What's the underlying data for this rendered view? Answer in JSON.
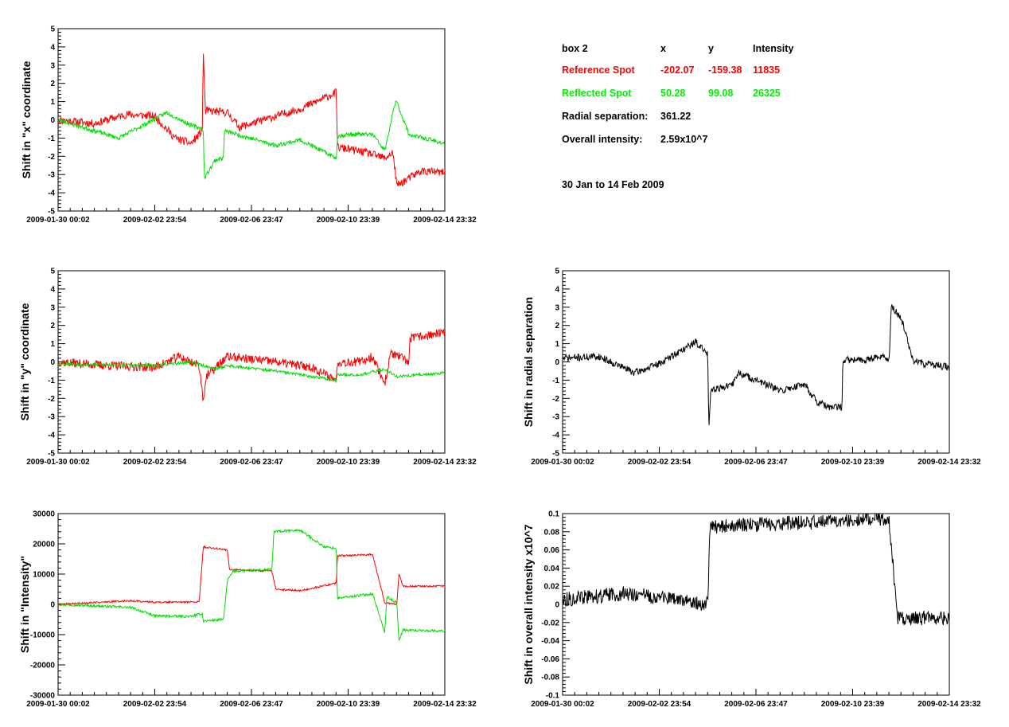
{
  "colors": {
    "reference": "#ff0000",
    "reflected": "#00dd00",
    "axis": "#000000",
    "single": "#000000"
  },
  "info": {
    "header": {
      "label": "box 2",
      "x": "x",
      "y": "y",
      "intensity": "Intensity"
    },
    "reference": {
      "label": "Reference Spot",
      "x": "-202.07",
      "y": "-159.38",
      "intensity": "11835"
    },
    "reflected": {
      "label": "Reflected Spot",
      "x": "50.28",
      "y": "99.08",
      "intensity": "26325"
    },
    "radial": {
      "label": "Radial separation:",
      "value": "361.22"
    },
    "overall": {
      "label": "Overall intensity:",
      "value": "2.59x10^7"
    },
    "period": "30 Jan to 14 Feb 2009"
  },
  "chart_data": [
    {
      "id": "shift-x",
      "type": "line",
      "ylabel": "Shift in \"x\" coordinate",
      "xlim": [
        "2009-01-30 00:02",
        "2009-02-14 23:32"
      ],
      "ylim": [
        -5,
        5
      ],
      "yticks": [
        "5",
        "4",
        "3",
        "2",
        "1",
        "0",
        "-1",
        "-2",
        "-3",
        "-4",
        "-5"
      ],
      "xticks": [
        "2009-01-30 00:02",
        "2009-02-02 23:54",
        "2009-02-06 23:47",
        "2009-02-10 23:39",
        "2009-02-14 23:32"
      ],
      "series": [
        {
          "color": "reference",
          "noise": 0.22,
          "seed": 11,
          "points": [
            [
              "2009-01-30 00:02",
              0
            ],
            [
              "2009-01-31 12:00",
              -0.2
            ],
            [
              "2009-02-01 20:00",
              0.3
            ],
            [
              "2009-02-03 00:00",
              0.2
            ],
            [
              "2009-02-03 20:00",
              -1
            ],
            [
              "2009-02-04 12:00",
              -1.3
            ],
            [
              "2009-02-04 23:00",
              -0.6
            ],
            [
              "2009-02-05 00:00",
              3.8
            ],
            [
              "2009-02-05 02:00",
              0.5
            ],
            [
              "2009-02-06 00:00",
              0.4
            ],
            [
              "2009-02-06 12:00",
              -0.4
            ],
            [
              "2009-02-07 12:00",
              0
            ],
            [
              "2009-02-09 00:00",
              0.6
            ],
            [
              "2009-02-10 12:00",
              1.5
            ],
            [
              "2009-02-10 13:00",
              -1.5
            ],
            [
              "2009-02-11 18:00",
              -1.8
            ],
            [
              "2009-02-12 12:00",
              -2.1
            ],
            [
              "2009-02-12 20:00",
              -1.8
            ],
            [
              "2009-02-13 00:00",
              -3.6
            ],
            [
              "2009-02-14 00:00",
              -2.8
            ],
            [
              "2009-02-14 23:32",
              -2.9
            ]
          ]
        },
        {
          "color": "reflected",
          "noise": 0.12,
          "seed": 23,
          "points": [
            [
              "2009-01-30 00:02",
              0
            ],
            [
              "2009-02-01 12:00",
              -1
            ],
            [
              "2009-02-02 12:00",
              -0.3
            ],
            [
              "2009-02-03 12:00",
              0.4
            ],
            [
              "2009-02-04 12:00",
              -0.3
            ],
            [
              "2009-02-05 00:00",
              -0.5
            ],
            [
              "2009-02-05 01:00",
              -3.2
            ],
            [
              "2009-02-05 12:00",
              -2.2
            ],
            [
              "2009-02-05 20:00",
              -2.1
            ],
            [
              "2009-02-05 21:00",
              -0.6
            ],
            [
              "2009-02-08 00:00",
              -1.4
            ],
            [
              "2009-02-09 00:00",
              -1.1
            ],
            [
              "2009-02-10 12:00",
              -2.1
            ],
            [
              "2009-02-10 13:00",
              -0.9
            ],
            [
              "2009-02-11 00:00",
              -0.8
            ],
            [
              "2009-02-12 00:00",
              -0.8
            ],
            [
              "2009-02-12 12:00",
              -1.7
            ],
            [
              "2009-02-12 23:00",
              1.1
            ],
            [
              "2009-02-13 12:00",
              -0.8
            ],
            [
              "2009-02-14 23:32",
              -1.3
            ]
          ]
        }
      ]
    },
    {
      "id": "shift-y",
      "type": "line",
      "ylabel": "Shift in \"y\" coordinate",
      "xlim": [
        "2009-01-30 00:02",
        "2009-02-14 23:32"
      ],
      "ylim": [
        -5,
        5
      ],
      "yticks": [
        "5",
        "4",
        "3",
        "2",
        "1",
        "0",
        "-1",
        "-2",
        "-3",
        "-4",
        "-5"
      ],
      "xticks": [
        "2009-01-30 00:02",
        "2009-02-02 23:54",
        "2009-02-06 23:47",
        "2009-02-10 23:39",
        "2009-02-14 23:32"
      ],
      "series": [
        {
          "color": "reference",
          "noise": 0.25,
          "seed": 37,
          "points": [
            [
              "2009-01-30 00:02",
              0
            ],
            [
              "2009-02-01 00:00",
              -0.2
            ],
            [
              "2009-02-03 00:00",
              -0.3
            ],
            [
              "2009-02-04 00:00",
              0.3
            ],
            [
              "2009-02-04 20:00",
              -0.2
            ],
            [
              "2009-02-05 00:00",
              -2.1
            ],
            [
              "2009-02-05 03:00",
              -0.8
            ],
            [
              "2009-02-06 00:00",
              0.3
            ],
            [
              "2009-02-08 00:00",
              0
            ],
            [
              "2009-02-09 12:00",
              -0.3
            ],
            [
              "2009-02-10 12:00",
              -1
            ],
            [
              "2009-02-10 13:00",
              0
            ],
            [
              "2009-02-11 12:00",
              0
            ],
            [
              "2009-02-12 00:00",
              0.3
            ],
            [
              "2009-02-12 12:00",
              -1.2
            ],
            [
              "2009-02-12 18:00",
              0.5
            ],
            [
              "2009-02-13 12:00",
              0
            ],
            [
              "2009-02-13 13:00",
              1.3
            ],
            [
              "2009-02-14 23:32",
              1.6
            ]
          ]
        },
        {
          "color": "reflected",
          "noise": 0.08,
          "seed": 53,
          "points": [
            [
              "2009-01-30 00:02",
              -0.1
            ],
            [
              "2009-02-03 00:00",
              -0.2
            ],
            [
              "2009-02-04 12:00",
              0
            ],
            [
              "2009-02-05 12:00",
              -0.4
            ],
            [
              "2009-02-06 00:00",
              -0.2
            ],
            [
              "2009-02-08 00:00",
              -0.5
            ],
            [
              "2009-02-10 12:00",
              -1
            ],
            [
              "2009-02-10 13:00",
              -0.7
            ],
            [
              "2009-02-11 12:00",
              -0.7
            ],
            [
              "2009-02-12 12:00",
              -0.4
            ],
            [
              "2009-02-13 00:00",
              -0.8
            ],
            [
              "2009-02-14 23:32",
              -0.6
            ]
          ]
        }
      ]
    },
    {
      "id": "radial",
      "type": "line",
      "ylabel": "Shift in radial separation",
      "xlim": [
        "2009-01-30 00:02",
        "2009-02-14 23:32"
      ],
      "ylim": [
        -5,
        5
      ],
      "yticks": [
        "5",
        "4",
        "3",
        "2",
        "1",
        "0",
        "-1",
        "-2",
        "-3",
        "-4",
        "-5"
      ],
      "xticks": [
        "2009-01-30 00:02",
        "2009-02-02 23:54",
        "2009-02-06 23:47",
        "2009-02-10 23:39",
        "2009-02-14 23:32"
      ],
      "series": [
        {
          "color": "single",
          "noise": 0.2,
          "seed": 71,
          "points": [
            [
              "2009-01-30 00:02",
              0.2
            ],
            [
              "2009-01-31 12:00",
              0.3
            ],
            [
              "2009-02-02 00:00",
              -0.6
            ],
            [
              "2009-02-03 00:00",
              -0.1
            ],
            [
              "2009-02-04 12:00",
              1.1
            ],
            [
              "2009-02-05 00:00",
              0.4
            ],
            [
              "2009-02-05 01:00",
              -3.5
            ],
            [
              "2009-02-05 03:00",
              -1.5
            ],
            [
              "2009-02-06 00:00",
              -1.3
            ],
            [
              "2009-02-06 06:00",
              -0.6
            ],
            [
              "2009-02-07 00:00",
              -1
            ],
            [
              "2009-02-08 00:00",
              -1.6
            ],
            [
              "2009-02-09 00:00",
              -1.2
            ],
            [
              "2009-02-09 12:00",
              -2.2
            ],
            [
              "2009-02-10 00:00",
              -2.5
            ],
            [
              "2009-02-10 13:00",
              -2.5
            ],
            [
              "2009-02-10 14:00",
              0.1
            ],
            [
              "2009-02-11 12:00",
              0.1
            ],
            [
              "2009-02-12 00:00",
              0.3
            ],
            [
              "2009-02-12 12:00",
              0.2
            ],
            [
              "2009-02-12 14:00",
              3
            ],
            [
              "2009-02-13 00:00",
              2.4
            ],
            [
              "2009-02-13 12:00",
              0
            ],
            [
              "2009-02-14 23:32",
              -0.3
            ]
          ]
        }
      ]
    },
    {
      "id": "intensity",
      "type": "line",
      "ylabel": "Shift in \"Intensity\"",
      "xlim": [
        "2009-01-30 00:02",
        "2009-02-14 23:32"
      ],
      "ylim": [
        -30000,
        30000
      ],
      "yticks": [
        "30000",
        "20000",
        "10000",
        "0",
        "-10000",
        "-20000",
        "-30000"
      ],
      "xticks": [
        "2009-01-30 00:02",
        "2009-02-02 23:54",
        "2009-02-06 23:47",
        "2009-02-10 23:39",
        "2009-02-14 23:32"
      ],
      "series": [
        {
          "color": "reference",
          "noise": 300,
          "seed": 89,
          "points": [
            [
              "2009-01-30 00:02",
              0
            ],
            [
              "2009-02-02 00:00",
              1200
            ],
            [
              "2009-02-03 00:00",
              700
            ],
            [
              "2009-02-04 20:00",
              800
            ],
            [
              "2009-02-05 00:00",
              19000
            ],
            [
              "2009-02-06 00:00",
              18000
            ],
            [
              "2009-02-06 02:00",
              11500
            ],
            [
              "2009-02-07 20:00",
              11000
            ],
            [
              "2009-02-08 00:00",
              5000
            ],
            [
              "2009-02-09 00:00",
              4500
            ],
            [
              "2009-02-10 12:00",
              7000
            ],
            [
              "2009-02-10 13:00",
              16000
            ],
            [
              "2009-02-12 00:00",
              16500
            ],
            [
              "2009-02-12 12:00",
              500
            ],
            [
              "2009-02-13 00:00",
              0
            ],
            [
              "2009-02-13 02:00",
              10000
            ],
            [
              "2009-02-13 06:00",
              6000
            ],
            [
              "2009-02-14 23:32",
              6000
            ]
          ]
        },
        {
          "color": "reflected",
          "noise": 400,
          "seed": 97,
          "points": [
            [
              "2009-01-30 00:02",
              0
            ],
            [
              "2009-02-02 00:00",
              -1000
            ],
            [
              "2009-02-03 00:00",
              -3800
            ],
            [
              "2009-02-04 12:00",
              -4000
            ],
            [
              "2009-02-04 23:00",
              -3000
            ],
            [
              "2009-02-05 00:00",
              -5500
            ],
            [
              "2009-02-05 20:00",
              -5000
            ],
            [
              "2009-02-06 00:00",
              8000
            ],
            [
              "2009-02-06 06:00",
              11000
            ],
            [
              "2009-02-07 20:00",
              11500
            ],
            [
              "2009-02-07 22:00",
              24000
            ],
            [
              "2009-02-09 00:00",
              24500
            ],
            [
              "2009-02-10 00:00",
              19000
            ],
            [
              "2009-02-10 12:00",
              18500
            ],
            [
              "2009-02-10 13:00",
              2000
            ],
            [
              "2009-02-11 12:00",
              3000
            ],
            [
              "2009-02-12 00:00",
              3500
            ],
            [
              "2009-02-12 12:00",
              -9500
            ],
            [
              "2009-02-12 14:00",
              2500
            ],
            [
              "2009-02-13 00:00",
              500
            ],
            [
              "2009-02-13 02:00",
              -12000
            ],
            [
              "2009-02-13 06:00",
              -8500
            ],
            [
              "2009-02-14 23:32",
              -8800
            ]
          ]
        }
      ]
    },
    {
      "id": "overall-intensity",
      "type": "line",
      "ylabel": "Shift in overall intensity x10^7",
      "xlim": [
        "2009-01-30 00:02",
        "2009-02-14 23:32"
      ],
      "ylim": [
        -0.1,
        0.1
      ],
      "yticks": [
        "0.1",
        "0.08",
        "0.06",
        "0.04",
        "0.02",
        "0",
        "-0.02",
        "-0.04",
        "-0.06",
        "-0.08",
        "-0.1"
      ],
      "xticks": [
        "2009-01-30 00:02",
        "2009-02-02 23:54",
        "2009-02-06 23:47",
        "2009-02-10 23:39",
        "2009-02-14 23:32"
      ],
      "series": [
        {
          "color": "single",
          "noise": 0.008,
          "seed": 113,
          "points": [
            [
              "2009-01-30 00:02",
              0.005
            ],
            [
              "2009-02-01 12:00",
              0.012
            ],
            [
              "2009-02-03 00:00",
              0.008
            ],
            [
              "2009-02-05 00:00",
              0.0
            ],
            [
              "2009-02-05 02:00",
              0.085
            ],
            [
              "2009-02-07 00:00",
              0.088
            ],
            [
              "2009-02-09 00:00",
              0.09
            ],
            [
              "2009-02-12 00:00",
              0.095
            ],
            [
              "2009-02-12 12:00",
              0.09
            ],
            [
              "2009-02-12 20:00",
              -0.015
            ],
            [
              "2009-02-14 23:32",
              -0.015
            ]
          ]
        }
      ]
    }
  ]
}
